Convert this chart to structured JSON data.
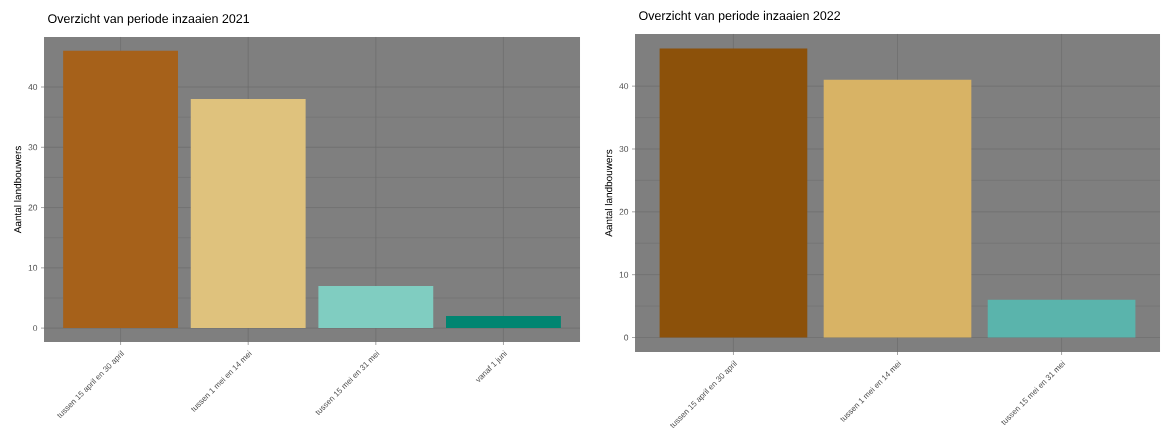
{
  "chart_data": [
    {
      "type": "bar",
      "title": "Overzicht van periode inzaaien 2021",
      "ylabel": "Aantal landbouwers",
      "categories": [
        "tussen 15 april en 30 april",
        "tussen 1 mei en 14 mei",
        "tussen 15 mei en 31 mei",
        "vanaf 1 juni"
      ],
      "values": [
        46,
        38,
        7,
        2
      ],
      "colors": [
        "#a6611a",
        "#dfc27d",
        "#80cdc1",
        "#018571"
      ],
      "ylim": [
        -2.3,
        48.3
      ],
      "yticks": [
        0,
        10,
        20,
        30,
        40
      ],
      "grid": true
    },
    {
      "type": "bar",
      "title": "Overzicht van periode inzaaien 2022",
      "ylabel": "Aantal landbouwers",
      "categories": [
        "tussen 15 april en 30 april",
        "tussen 1 mei en 14 mei",
        "tussen 15 mei en 31 mei"
      ],
      "values": [
        46,
        41,
        6
      ],
      "colors": [
        "#8c510a",
        "#d8b365",
        "#5ab4ac"
      ],
      "ylim": [
        -2.3,
        48.3
      ],
      "yticks": [
        0,
        10,
        20,
        30,
        40
      ],
      "grid": true
    }
  ]
}
